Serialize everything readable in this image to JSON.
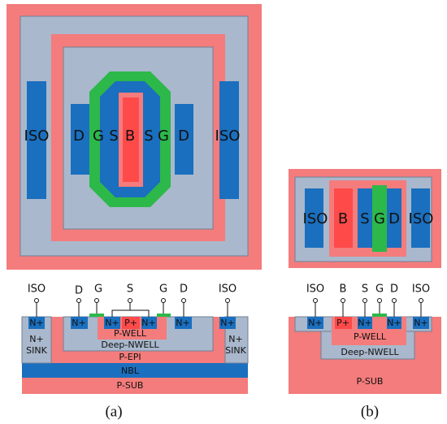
{
  "panel_a": {
    "layout_labels": [
      "ISO",
      "D",
      "G",
      "S",
      "B",
      "S",
      "G",
      "D",
      "ISO"
    ],
    "terminals": [
      "ISO",
      "D",
      "G",
      "S",
      "G",
      "D",
      "ISO"
    ],
    "diffusions": [
      "N+",
      "N+",
      "N+",
      "P+",
      "N+",
      "N+",
      "N+"
    ],
    "regions": {
      "p_well": "P-WELL",
      "deep_nwell": "Deep-NWELL",
      "p_epi": "P-EPI",
      "nbl": "NBL",
      "p_sub": "P-SUB",
      "sink": [
        "N+",
        "SINK"
      ]
    },
    "caption": "(a)"
  },
  "panel_b": {
    "layout_labels": [
      "ISO",
      "B",
      "S",
      "G",
      "D",
      "ISO"
    ],
    "terminals": [
      "ISO",
      "B",
      "S",
      "G",
      "D",
      "ISO"
    ],
    "diffusions": [
      "N+",
      "P+",
      "N+",
      "N+",
      "N+"
    ],
    "regions": {
      "p_well": "P-WELL",
      "deep_nwell": "Deep-NWELL",
      "p_sub": "P-SUB"
    },
    "caption": "(b)"
  }
}
